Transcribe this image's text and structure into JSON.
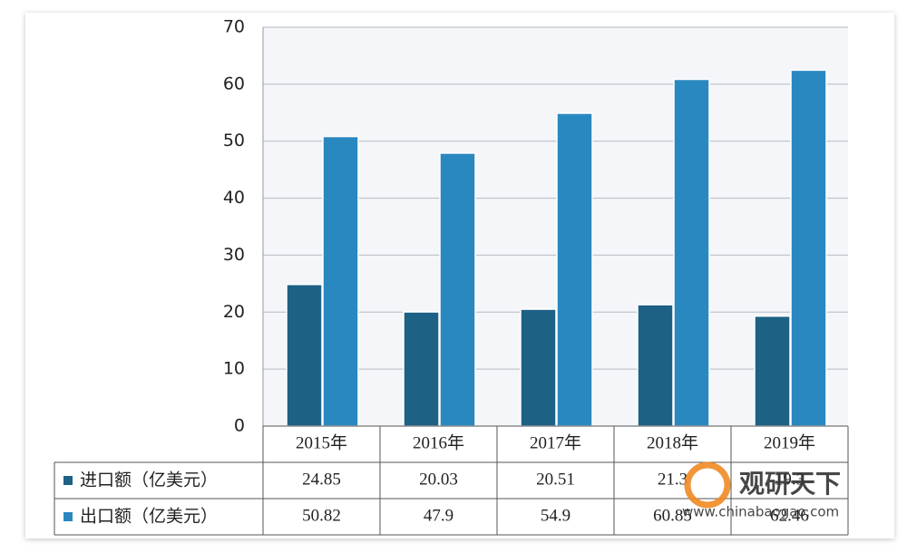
{
  "chart_data": {
    "type": "bar",
    "categories": [
      "2015年",
      "2016年",
      "2017年",
      "2018年",
      "2019年"
    ],
    "series": [
      {
        "name": "进口额（亿美元）",
        "color": "#1d6185",
        "values": [
          24.85,
          20.03,
          20.51,
          21.3,
          19.3
        ]
      },
      {
        "name": "出口额（亿美元）",
        "color": "#2a88c0",
        "values": [
          50.82,
          47.9,
          54.9,
          60.85,
          62.46
        ]
      }
    ],
    "ylim": [
      0,
      70
    ],
    "yticks": [
      0,
      10,
      20,
      30,
      40,
      50,
      60,
      70
    ],
    "grid": true,
    "watermark": {
      "brand": "观研天下",
      "url": "www.chinabaogao.com"
    }
  }
}
